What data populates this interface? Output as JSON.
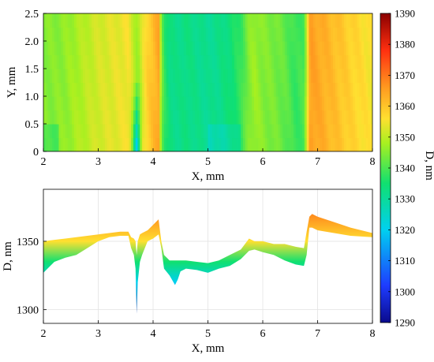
{
  "chart_data": [
    {
      "type": "heatmap",
      "title": "",
      "xlabel": "X, mm",
      "ylabel": "Y, mm",
      "xlim": [
        2,
        8
      ],
      "ylim": [
        0,
        2.5
      ],
      "xticks": [
        "2",
        "3",
        "4",
        "5",
        "6",
        "7",
        "8"
      ],
      "yticks": [
        "0",
        "0.5",
        "1.0",
        "1.5",
        "2.0",
        "2.5"
      ],
      "value_name": "D, nm",
      "profile_x": [
        2.0,
        2.2,
        2.4,
        2.6,
        2.8,
        3.0,
        3.2,
        3.4,
        3.55,
        3.65,
        3.72,
        3.8,
        3.9,
        4.0,
        4.1,
        4.15,
        4.2,
        4.3,
        4.45,
        4.6,
        4.8,
        5.0,
        5.2,
        5.4,
        5.6,
        5.75,
        5.85,
        6.0,
        6.2,
        6.4,
        6.6,
        6.75,
        6.8,
        6.85,
        6.9,
        7.0,
        7.3,
        7.6,
        8.0
      ],
      "profile_d": [
        1345,
        1345,
        1346,
        1348,
        1350,
        1352,
        1353,
        1354,
        1355,
        1350,
        1347,
        1353,
        1358,
        1361,
        1364,
        1345,
        1338,
        1333,
        1332,
        1333,
        1332,
        1331,
        1332,
        1334,
        1338,
        1345,
        1347,
        1345,
        1344,
        1342,
        1338,
        1340,
        1350,
        1364,
        1365,
        1364,
        1361,
        1358,
        1355
      ]
    },
    {
      "type": "area",
      "title": "",
      "xlabel": "X, mm",
      "ylabel": "D, nm",
      "xlim": [
        2,
        8
      ],
      "ylim": [
        1290,
        1388
      ],
      "xticks": [
        "2",
        "3",
        "4",
        "5",
        "6",
        "7",
        "8"
      ],
      "yticks": [
        "1300",
        "1350"
      ],
      "x": [
        2.0,
        2.2,
        2.4,
        2.6,
        2.8,
        3.0,
        3.2,
        3.4,
        3.55,
        3.6,
        3.65,
        3.68,
        3.7,
        3.72,
        3.76,
        3.8,
        3.9,
        4.0,
        4.1,
        4.15,
        4.2,
        4.3,
        4.4,
        4.45,
        4.5,
        4.6,
        4.8,
        5.0,
        5.2,
        5.4,
        5.6,
        5.75,
        5.85,
        6.0,
        6.2,
        6.4,
        6.6,
        6.75,
        6.8,
        6.85,
        6.9,
        7.0,
        7.3,
        7.6,
        8.0
      ],
      "upper": [
        1350,
        1351,
        1352,
        1353,
        1354,
        1355,
        1356,
        1357,
        1357,
        1353,
        1352,
        1350,
        1340,
        1350,
        1355,
        1356,
        1358,
        1362,
        1366,
        1350,
        1340,
        1336,
        1336,
        1336,
        1336,
        1336,
        1335,
        1334,
        1336,
        1340,
        1344,
        1352,
        1350,
        1350,
        1348,
        1348,
        1346,
        1345,
        1357,
        1368,
        1370,
        1368,
        1364,
        1360,
        1356
      ],
      "lower": [
        1327,
        1335,
        1338,
        1340,
        1345,
        1350,
        1353,
        1354,
        1354,
        1345,
        1340,
        1330,
        1297,
        1320,
        1335,
        1340,
        1350,
        1352,
        1355,
        1345,
        1330,
        1325,
        1318,
        1322,
        1328,
        1330,
        1329,
        1327,
        1330,
        1332,
        1337,
        1343,
        1344,
        1342,
        1340,
        1336,
        1333,
        1332,
        1340,
        1360,
        1360,
        1358,
        1356,
        1354,
        1353
      ]
    },
    {
      "type": "colorbar",
      "label": "D, nm",
      "range": [
        1290,
        1390
      ],
      "ticks": [
        "1290",
        "1300",
        "1310",
        "1320",
        "1330",
        "1340",
        "1350",
        "1360",
        "1370",
        "1380",
        "1390"
      ]
    }
  ]
}
